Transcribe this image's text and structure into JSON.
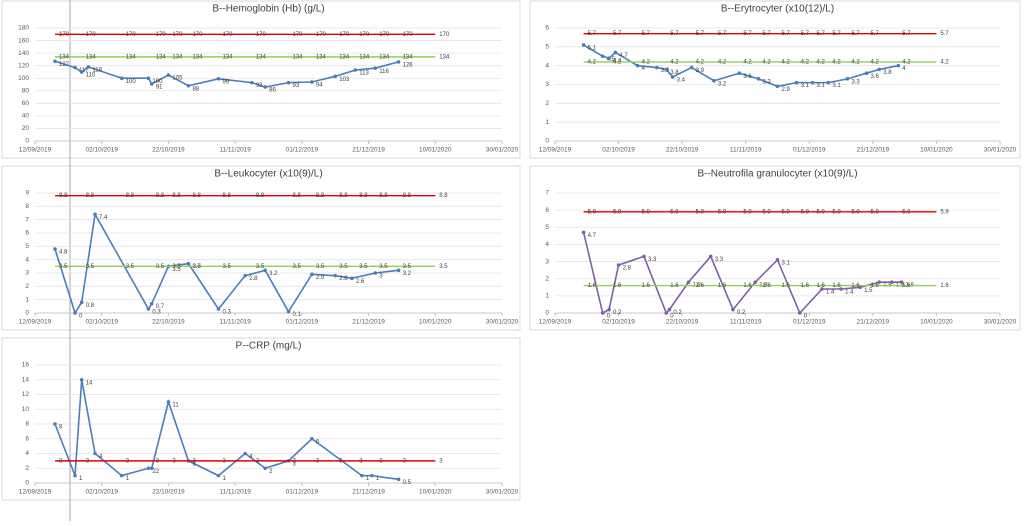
{
  "chart_data": [
    {
      "type": "line",
      "title": "B--Hemoglobin (Hb) (g/L)",
      "xlim": [
        "12/09/2019",
        "30/01/2020"
      ],
      "xticks": [
        "12/09/2019",
        "02/10/2019",
        "22/10/2019",
        "11/11/2019",
        "01/12/2019",
        "21/12/2019",
        "10/01/2020",
        "30/01/2020"
      ],
      "ylim": [
        0,
        180
      ],
      "yticks": [
        0,
        20,
        40,
        60,
        80,
        100,
        120,
        140,
        160,
        180
      ],
      "grid": true,
      "series": [
        {
          "color": "#4a7ebb",
          "markers": true,
          "x": [
            "18/09/2019",
            "24/09/2019",
            "26/09/2019",
            "28/09/2019",
            "08/10/2019",
            "16/10/2019",
            "17/10/2019",
            "22/10/2019",
            "28/10/2019",
            "06/11/2019",
            "16/11/2019",
            "20/11/2019",
            "27/11/2019",
            "04/12/2019",
            "11/12/2019",
            "17/12/2019",
            "23/12/2019",
            "30/12/2019"
          ],
          "values": [
            127,
            117,
            110,
            118,
            100,
            100,
            91,
            105,
            88,
            99,
            93,
            86,
            93,
            94,
            103,
            113,
            116,
            126
          ]
        },
        {
          "color": "#e00000",
          "markers": false,
          "x": [
            "18/09/2019",
            "26/09/2019",
            "08/10/2019",
            "17/10/2019",
            "22/10/2019",
            "28/10/2019",
            "06/11/2019",
            "16/11/2019",
            "27/11/2019",
            "04/12/2019",
            "11/12/2019",
            "17/12/2019",
            "23/12/2019",
            "30/12/2019",
            "10/01/2020"
          ],
          "values": [
            170,
            170,
            170,
            170,
            170,
            170,
            170,
            170,
            170,
            170,
            170,
            170,
            170,
            170,
            170
          ]
        },
        {
          "color": "#92d050",
          "markers": false,
          "x": [
            "18/09/2019",
            "26/09/2019",
            "08/10/2019",
            "17/10/2019",
            "22/10/2019",
            "28/10/2019",
            "06/11/2019",
            "16/11/2019",
            "27/11/2019",
            "04/12/2019",
            "11/12/2019",
            "17/12/2019",
            "23/12/2019",
            "30/12/2019",
            "10/01/2020"
          ],
          "values": [
            134,
            134,
            134,
            134,
            134,
            134,
            134,
            134,
            134,
            134,
            134,
            134,
            134,
            134,
            134
          ]
        }
      ]
    },
    {
      "type": "line",
      "title": "B--Erytrocyter (x10(12)/L)",
      "xlim": [
        "12/09/2019",
        "30/01/2020"
      ],
      "xticks": [
        "12/09/2019",
        "02/10/2019",
        "22/10/2019",
        "11/11/2019",
        "01/12/2019",
        "21/12/2019",
        "10/01/2020",
        "30/01/2020"
      ],
      "ylim": [
        0,
        6
      ],
      "yticks": [
        0,
        1,
        2,
        3,
        4,
        5,
        6
      ],
      "grid": true,
      "series": [
        {
          "color": "#4a7ebb",
          "markers": true,
          "x": [
            "21/09/2019",
            "27/09/2019",
            "29/09/2019",
            "01/10/2019",
            "08/10/2019",
            "14/10/2019",
            "17/10/2019",
            "19/10/2019",
            "25/10/2019",
            "01/11/2019",
            "09/11/2019",
            "15/11/2019",
            "21/11/2019",
            "27/11/2019",
            "02/12/2019",
            "07/12/2019",
            "13/12/2019",
            "19/12/2019",
            "23/12/2019",
            "29/12/2019"
          ],
          "values": [
            5.1,
            4.5,
            4.4,
            4.7,
            4.0,
            3.9,
            3.8,
            3.4,
            3.9,
            3.2,
            3.6,
            3.3,
            2.9,
            3.1,
            3.1,
            3.1,
            3.3,
            3.6,
            3.8,
            4.0
          ]
        },
        {
          "color": "#e00000",
          "markers": false,
          "x": [
            "21/09/2019",
            "29/09/2019",
            "08/10/2019",
            "17/10/2019",
            "25/10/2019",
            "01/11/2019",
            "09/11/2019",
            "15/11/2019",
            "21/11/2019",
            "27/11/2019",
            "02/12/2019",
            "07/12/2019",
            "13/12/2019",
            "19/12/2019",
            "29/12/2019",
            "10/01/2020"
          ],
          "values": [
            5.7,
            5.7,
            5.7,
            5.7,
            5.7,
            5.7,
            5.7,
            5.7,
            5.7,
            5.7,
            5.7,
            5.7,
            5.7,
            5.7,
            5.7,
            5.7
          ]
        },
        {
          "color": "#92d050",
          "markers": false,
          "x": [
            "21/09/2019",
            "29/09/2019",
            "08/10/2019",
            "17/10/2019",
            "25/10/2019",
            "01/11/2019",
            "09/11/2019",
            "15/11/2019",
            "21/11/2019",
            "27/11/2019",
            "02/12/2019",
            "07/12/2019",
            "13/12/2019",
            "19/12/2019",
            "29/12/2019",
            "10/01/2020"
          ],
          "values": [
            4.2,
            4.2,
            4.2,
            4.2,
            4.2,
            4.2,
            4.2,
            4.2,
            4.2,
            4.2,
            4.2,
            4.2,
            4.2,
            4.2,
            4.2,
            4.2
          ]
        }
      ]
    },
    {
      "type": "line",
      "title": "B--Leukocyter (x10(9)/L)",
      "xlim": [
        "12/09/2019",
        "30/01/2020"
      ],
      "xticks": [
        "12/09/2019",
        "02/10/2019",
        "22/10/2019",
        "11/11/2019",
        "01/12/2019",
        "21/12/2019",
        "10/01/2020",
        "30/01/2020"
      ],
      "ylim": [
        0,
        9
      ],
      "yticks": [
        0,
        1,
        2,
        3,
        4,
        5,
        6,
        7,
        8,
        9
      ],
      "grid": true,
      "series": [
        {
          "color": "#4a7ebb",
          "markers": true,
          "x": [
            "18/09/2019",
            "24/09/2019",
            "26/09/2019",
            "30/09/2019",
            "16/10/2019",
            "17/10/2019",
            "22/10/2019",
            "28/10/2019",
            "06/11/2019",
            "14/11/2019",
            "20/11/2019",
            "27/11/2019",
            "04/12/2019",
            "11/12/2019",
            "16/12/2019",
            "23/12/2019",
            "30/12/2019"
          ],
          "values": [
            4.8,
            0,
            0.8,
            7.4,
            0.3,
            0.7,
            3.5,
            3.7,
            0.3,
            2.8,
            3.2,
            0.1,
            2.9,
            2.8,
            2.6,
            3.0,
            3.2
          ]
        },
        {
          "color": "#e00000",
          "markers": false,
          "x": [
            "18/09/2019",
            "26/09/2019",
            "08/10/2019",
            "17/10/2019",
            "22/10/2019",
            "28/10/2019",
            "06/11/2019",
            "16/11/2019",
            "27/11/2019",
            "04/12/2019",
            "11/12/2019",
            "17/12/2019",
            "23/12/2019",
            "30/12/2019",
            "10/01/2020"
          ],
          "values": [
            8.8,
            8.8,
            8.8,
            8.8,
            8.8,
            8.8,
            8.8,
            8.8,
            8.8,
            8.8,
            8.8,
            8.8,
            8.8,
            8.8,
            8.8
          ]
        },
        {
          "color": "#92d050",
          "markers": false,
          "x": [
            "18/09/2019",
            "26/09/2019",
            "08/10/2019",
            "17/10/2019",
            "22/10/2019",
            "28/10/2019",
            "06/11/2019",
            "16/11/2019",
            "27/11/2019",
            "04/12/2019",
            "11/12/2019",
            "17/12/2019",
            "23/12/2019",
            "30/12/2019",
            "10/01/2020"
          ],
          "values": [
            3.5,
            3.5,
            3.5,
            3.5,
            3.5,
            3.5,
            3.5,
            3.5,
            3.5,
            3.5,
            3.5,
            3.5,
            3.5,
            3.5,
            3.5
          ]
        }
      ]
    },
    {
      "type": "line",
      "title": "B--Neutrofila granulocyter (x10(9)/L)",
      "xlim": [
        "12/09/2019",
        "30/01/2020"
      ],
      "xticks": [
        "12/09/2019",
        "02/10/2019",
        "22/10/2019",
        "11/11/2019",
        "01/12/2019",
        "21/12/2019",
        "10/01/2020",
        "30/01/2020"
      ],
      "ylim": [
        0,
        7
      ],
      "yticks": [
        0,
        1,
        2,
        3,
        4,
        5,
        6,
        7
      ],
      "grid": true,
      "series": [
        {
          "color": "#7f5fa8",
          "markers": true,
          "x": [
            "21/09/2019",
            "27/09/2019",
            "29/09/2019",
            "02/10/2019",
            "10/10/2019",
            "17/10/2019",
            "18/10/2019",
            "24/10/2019",
            "31/10/2019",
            "07/11/2019",
            "14/11/2019",
            "21/11/2019",
            "28/11/2019",
            "05/12/2019",
            "11/12/2019",
            "17/12/2019",
            "23/12/2019",
            "27/12/2019",
            "30/12/2019"
          ],
          "values": [
            4.7,
            0,
            0.2,
            2.8,
            3.3,
            0,
            0.2,
            1.8,
            3.3,
            0.2,
            1.8,
            3.1,
            0,
            1.4,
            1.4,
            1.5,
            1.8,
            1.8,
            1.8
          ]
        },
        {
          "color": "#e00000",
          "markers": false,
          "x": [
            "21/09/2019",
            "29/09/2019",
            "08/10/2019",
            "17/10/2019",
            "25/10/2019",
            "01/11/2019",
            "09/11/2019",
            "15/11/2019",
            "21/11/2019",
            "27/11/2019",
            "02/12/2019",
            "07/12/2019",
            "13/12/2019",
            "19/12/2019",
            "29/12/2019",
            "10/01/2020"
          ],
          "values": [
            5.9,
            5.9,
            5.9,
            5.9,
            5.9,
            5.9,
            5.9,
            5.9,
            5.9,
            5.9,
            5.9,
            5.9,
            5.9,
            5.9,
            5.9,
            5.9
          ]
        },
        {
          "color": "#92d050",
          "markers": false,
          "x": [
            "21/09/2019",
            "29/09/2019",
            "08/10/2019",
            "17/10/2019",
            "25/10/2019",
            "01/11/2019",
            "09/11/2019",
            "15/11/2019",
            "21/11/2019",
            "27/11/2019",
            "02/12/2019",
            "07/12/2019",
            "13/12/2019",
            "19/12/2019",
            "29/12/2019",
            "10/01/2020"
          ],
          "values": [
            1.6,
            1.6,
            1.6,
            1.6,
            1.6,
            1.6,
            1.6,
            1.6,
            1.6,
            1.6,
            1.6,
            1.6,
            1.6,
            1.6,
            1.6,
            1.6
          ]
        }
      ]
    },
    {
      "type": "line",
      "title": "P--CRP (mg/L)",
      "xlim": [
        "12/09/2019",
        "30/01/2020"
      ],
      "xticks": [
        "12/09/2019",
        "02/10/2019",
        "22/10/2019",
        "11/11/2019",
        "01/12/2019",
        "21/12/2019",
        "10/01/2020",
        "30/01/2020"
      ],
      "ylim": [
        0,
        16
      ],
      "yticks": [
        0,
        2,
        4,
        6,
        8,
        10,
        12,
        14,
        16
      ],
      "grid": true,
      "series": [
        {
          "color": "#4a7ebb",
          "markers": true,
          "x": [
            "18/09/2019",
            "24/09/2019",
            "26/09/2019",
            "30/09/2019",
            "08/10/2019",
            "16/10/2019",
            "17/10/2019",
            "22/10/2019",
            "28/10/2019",
            "06/11/2019",
            "14/11/2019",
            "20/11/2019",
            "27/11/2019",
            "04/12/2019",
            "19/12/2019",
            "22/12/2019",
            "30/12/2019"
          ],
          "values": [
            8,
            1,
            14,
            4,
            1,
            2,
            2,
            11,
            3,
            1,
            4,
            2,
            3,
            6,
            1,
            1,
            0.5
          ]
        },
        {
          "color": "#e00000",
          "markers": false,
          "x": [
            "18/09/2019",
            "26/09/2019",
            "08/10/2019",
            "17/10/2019",
            "22/10/2019",
            "28/10/2019",
            "06/11/2019",
            "16/11/2019",
            "27/11/2019",
            "04/12/2019",
            "11/12/2019",
            "17/12/2019",
            "23/12/2019",
            "30/12/2019",
            "10/01/2020"
          ],
          "values": [
            3,
            3,
            3,
            3,
            3,
            3,
            3,
            3,
            3,
            3,
            3,
            3,
            3,
            3,
            3
          ]
        }
      ]
    }
  ]
}
